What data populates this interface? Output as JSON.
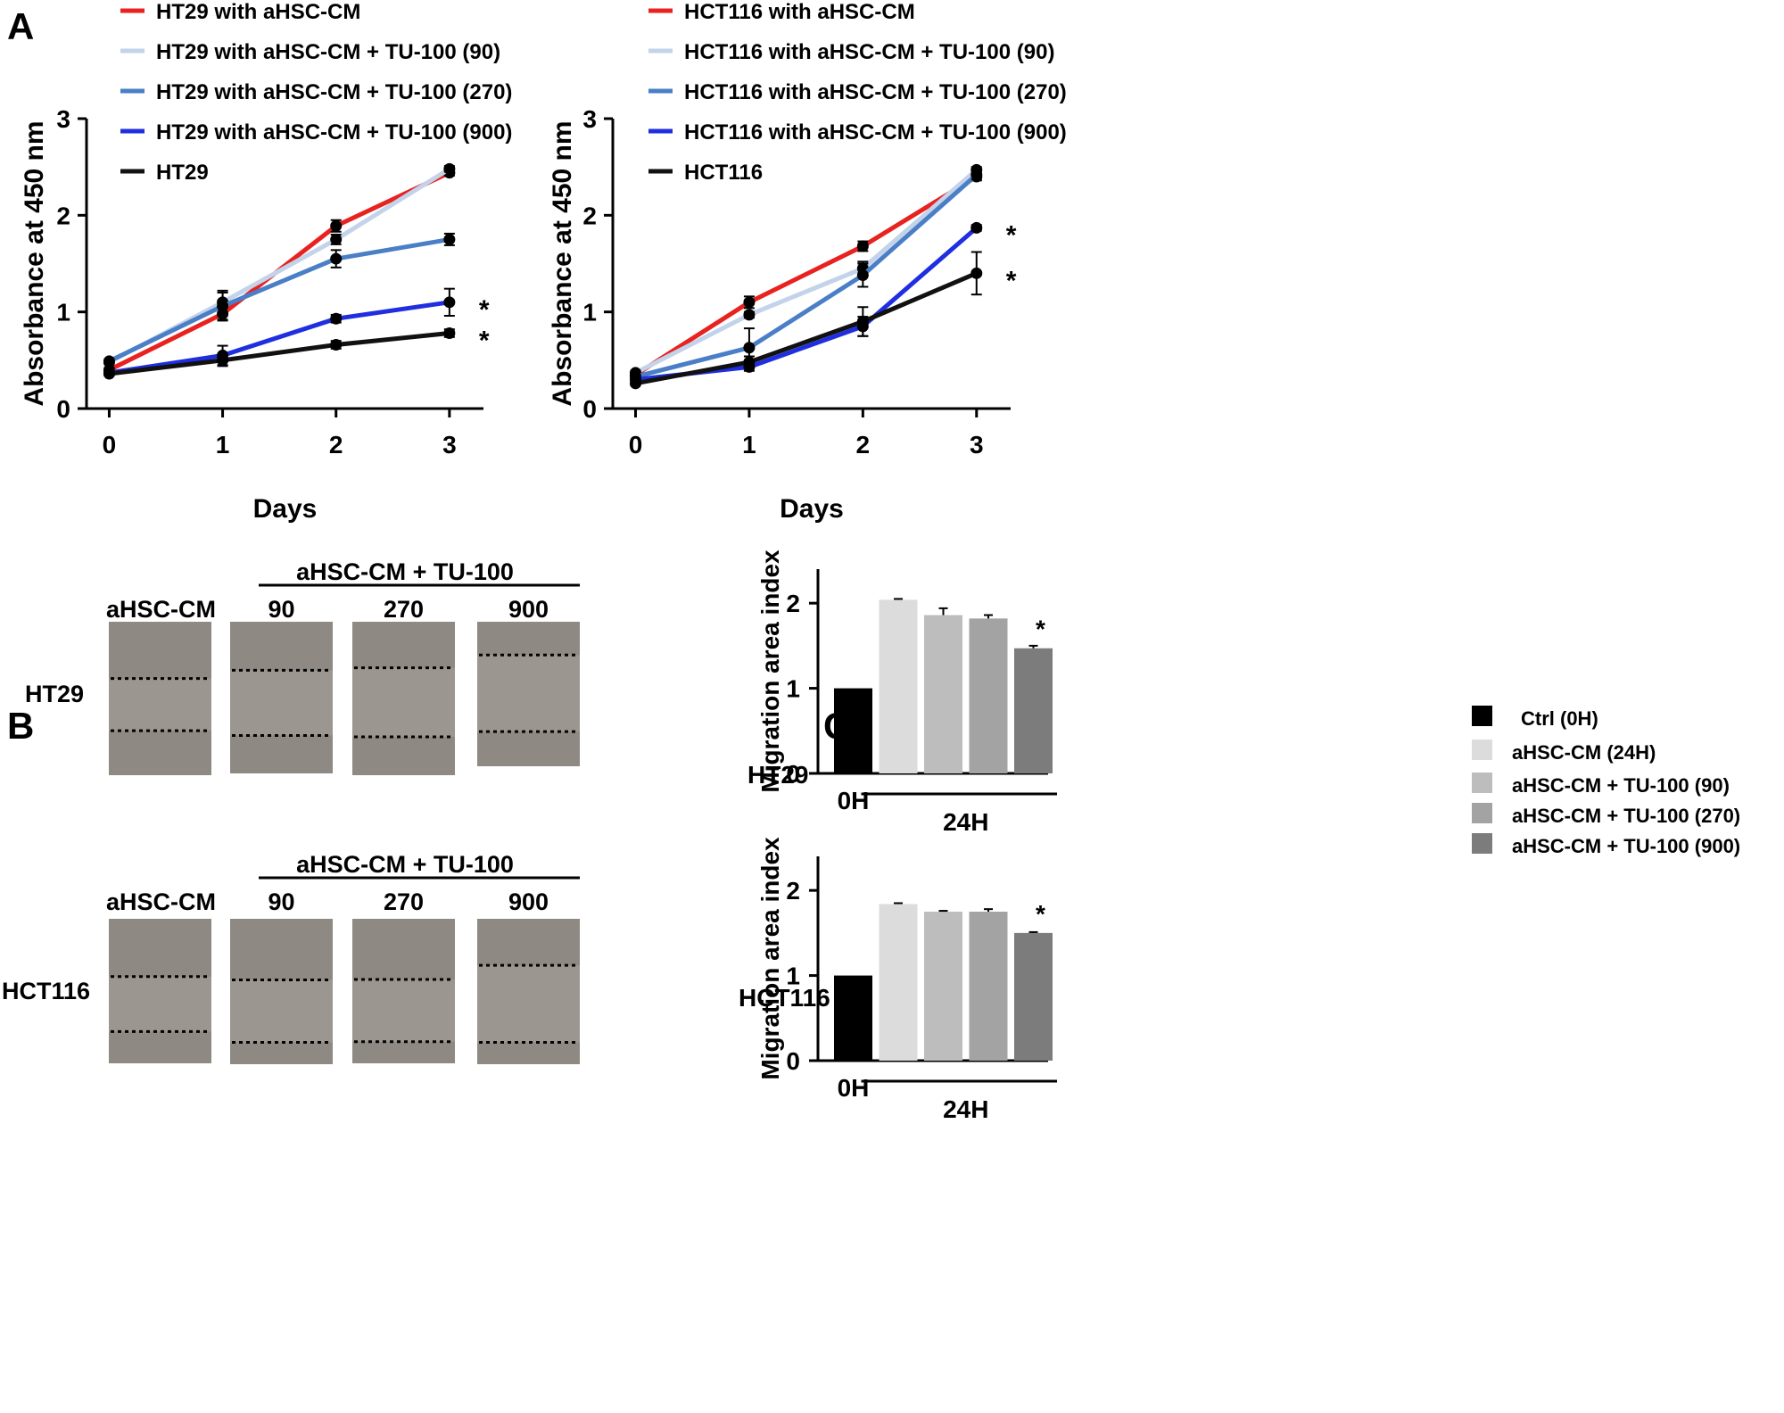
{
  "panels": {
    "a_label": "A",
    "b_label": "B",
    "c_label": "C"
  },
  "chart_data": [
    {
      "id": "a_ht29",
      "type": "line",
      "xlabel": "Days",
      "ylabel": "Absorbance at 450 nm",
      "x": [
        0,
        1,
        2,
        3
      ],
      "xlim": [
        -0.2,
        3.3
      ],
      "ylim": [
        0,
        3
      ],
      "xticks": [
        "0",
        "1",
        "2",
        "3"
      ],
      "yticks": [
        "0",
        "1",
        "2",
        "3"
      ],
      "legend_position": "top-left",
      "series": [
        {
          "name": "HT29 with aHSC-CM",
          "color": "#e8221f",
          "values": [
            0.4,
            0.98,
            1.89,
            2.44
          ],
          "err": [
            0.02,
            0.07,
            0.06,
            0.03
          ]
        },
        {
          "name": "HT29 with aHSC-CM + TU-100 (90)",
          "color": "#c3d3ea",
          "values": [
            0.48,
            1.1,
            1.75,
            2.48
          ],
          "err": [
            0.02,
            0.12,
            0.05,
            0.03
          ]
        },
        {
          "name": "HT29 with aHSC-CM + TU-100 (270)",
          "color": "#4a7fc7",
          "values": [
            0.49,
            1.06,
            1.55,
            1.75
          ],
          "err": [
            0.02,
            0.14,
            0.09,
            0.06
          ]
        },
        {
          "name": "HT29 with aHSC-CM + TU-100 (900)",
          "color": "#1f2fe0",
          "values": [
            0.37,
            0.55,
            0.93,
            1.1
          ],
          "err": [
            0.02,
            0.1,
            0.04,
            0.14
          ]
        },
        {
          "name": "HT29",
          "color": "#111111",
          "values": [
            0.36,
            0.5,
            0.66,
            0.78
          ],
          "err": [
            0.02,
            0.06,
            0.04,
            0.04
          ]
        }
      ],
      "annotations": [
        {
          "text": "*",
          "x": 3,
          "y": 1.1
        },
        {
          "text": "*",
          "x": 3,
          "y": 0.78
        }
      ]
    },
    {
      "id": "a_hct116",
      "type": "line",
      "xlabel": "Days",
      "ylabel": "Absorbance at 450 nm",
      "x": [
        0,
        1,
        2,
        3
      ],
      "xlim": [
        -0.2,
        3.3
      ],
      "ylim": [
        0,
        3
      ],
      "xticks": [
        "0",
        "1",
        "2",
        "3"
      ],
      "yticks": [
        "0",
        "1",
        "2",
        "3"
      ],
      "legend_position": "top-left",
      "series": [
        {
          "name": "HCT116 with aHSC-CM",
          "color": "#e8221f",
          "values": [
            0.35,
            1.1,
            1.68,
            2.4
          ],
          "err": [
            0.02,
            0.06,
            0.05,
            0.04
          ]
        },
        {
          "name": "HCT116 with aHSC-CM + TU-100 (90)",
          "color": "#c3d3ea",
          "values": [
            0.37,
            0.97,
            1.45,
            2.47
          ],
          "err": [
            0.02,
            0.03,
            0.07,
            0.03
          ]
        },
        {
          "name": "HCT116 with aHSC-CM + TU-100 (270)",
          "color": "#4a7fc7",
          "values": [
            0.33,
            0.63,
            1.38,
            2.42
          ],
          "err": [
            0.02,
            0.2,
            0.12,
            0.05
          ]
        },
        {
          "name": "HCT116 with aHSC-CM + TU-100 (900)",
          "color": "#1f2fe0",
          "values": [
            0.3,
            0.43,
            0.85,
            1.87
          ],
          "err": [
            0.02,
            0.04,
            0.1,
            0.03
          ]
        },
        {
          "name": "HCT116",
          "color": "#111111",
          "values": [
            0.26,
            0.48,
            0.9,
            1.4
          ],
          "err": [
            0.02,
            0.06,
            0.15,
            0.22
          ]
        }
      ],
      "annotations": [
        {
          "text": "*",
          "x": 3,
          "y": 1.87
        },
        {
          "text": "*",
          "x": 3,
          "y": 1.4
        }
      ]
    },
    {
      "id": "c_ht29",
      "type": "bar",
      "row_label": "HT29",
      "ylabel": "Migration  area index",
      "ylim": [
        0,
        2.4
      ],
      "yticks": [
        "0",
        "1",
        "2"
      ],
      "categories": [
        "Ctrl (0H)",
        "aHSC-CM (24H)",
        "aHSC-CM + TU-100 (90)",
        "aHSC-CM + TU-100 (270)",
        "aHSC-CM + TU-100 (900)"
      ],
      "values": [
        1.0,
        2.04,
        1.86,
        1.82,
        1.47
      ],
      "err": [
        0.0,
        0.01,
        0.08,
        0.04,
        0.03
      ],
      "colors": [
        "#000000",
        "#dcdcdc",
        "#bdbdbd",
        "#a3a3a3",
        "#7c7c7c"
      ],
      "group_labels": {
        "zero": "0H",
        "later": "24H"
      },
      "annotations": [
        {
          "text": "*",
          "category": "aHSC-CM + TU-100 (900)"
        }
      ]
    },
    {
      "id": "c_hct116",
      "type": "bar",
      "row_label": "HCT116",
      "ylabel": "Migration  area index",
      "ylim": [
        0,
        2.4
      ],
      "yticks": [
        "0",
        "1",
        "2"
      ],
      "categories": [
        "Ctrl (0H)",
        "aHSC-CM (24H)",
        "aHSC-CM + TU-100 (90)",
        "aHSC-CM + TU-100 (270)",
        "aHSC-CM + TU-100 (900)"
      ],
      "values": [
        1.0,
        1.84,
        1.75,
        1.75,
        1.5
      ],
      "err": [
        0.0,
        0.01,
        0.01,
        0.03,
        0.01
      ],
      "colors": [
        "#000000",
        "#dcdcdc",
        "#bdbdbd",
        "#a3a3a3",
        "#7c7c7c"
      ],
      "group_labels": {
        "zero": "0H",
        "later": "24H"
      },
      "annotations": [
        {
          "text": "*",
          "category": "aHSC-CM + TU-100 (900)"
        }
      ]
    }
  ],
  "panel_b": {
    "header": "aHSC-CM + TU-100",
    "columns": [
      "aHSC-CM",
      "90",
      "270",
      "900"
    ],
    "rows": [
      {
        "label": "HT29",
        "gap": [
          [
            0.37,
            0.71
          ],
          [
            0.32,
            0.75
          ],
          [
            0.3,
            0.75
          ],
          [
            0.23,
            0.76
          ]
        ]
      },
      {
        "label": "HCT116",
        "gap": [
          [
            0.4,
            0.78
          ],
          [
            0.42,
            0.85
          ],
          [
            0.42,
            0.85
          ],
          [
            0.32,
            0.85
          ]
        ]
      }
    ]
  }
}
